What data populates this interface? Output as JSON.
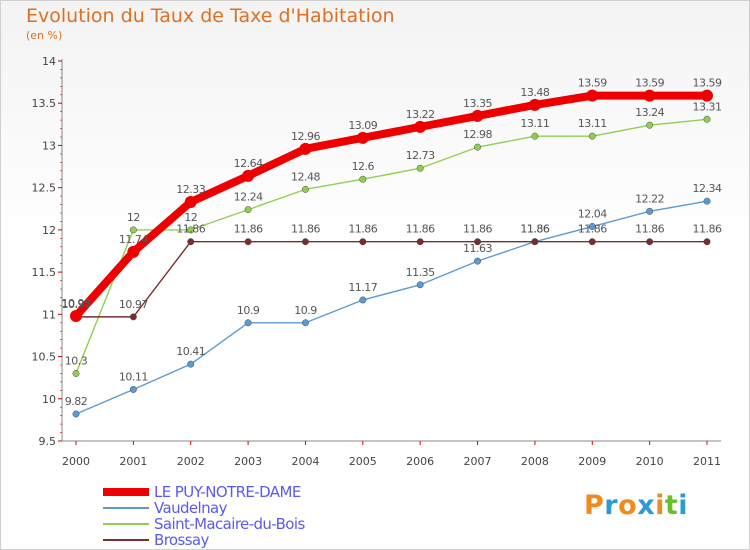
{
  "title": "Evolution du Taux de Taxe d'Habitation",
  "subtitle": "(en %)",
  "logo": {
    "text": "Proxiti",
    "colors": [
      "#f08a1c",
      "#2d9ad6",
      "#f08a1c",
      "#2d9ad6",
      "#f08a1c",
      "#6bbf2a",
      "#2d9ad6"
    ]
  },
  "chart_data": {
    "type": "line",
    "x": [
      "2000",
      "2001",
      "2002",
      "2003",
      "2004",
      "2005",
      "2006",
      "2007",
      "2008",
      "2009",
      "2010",
      "2011"
    ],
    "ylim": [
      9.5,
      14
    ],
    "yticks": [
      "9.5",
      "10",
      "10.5",
      "11",
      "11.5",
      "12",
      "12.5",
      "13",
      "13.5",
      "14"
    ],
    "grid": false,
    "legend_position": "bottom-left",
    "series": [
      {
        "name": "LE PUY-NOTRE-DAME",
        "color": "#ee0000",
        "values": [
          10.98,
          11.74,
          12.33,
          12.64,
          12.96,
          13.09,
          13.22,
          13.35,
          13.48,
          13.59,
          13.59,
          13.59
        ],
        "labels": [
          "10.98",
          "11.74",
          "12.33",
          "12.64",
          "12.96",
          "13.09",
          "13.22",
          "13.35",
          "13.48",
          "13.59",
          "13.59",
          "13.59"
        ]
      },
      {
        "name": "Vaudelnay",
        "color": "#5b9bd5",
        "values": [
          9.82,
          10.11,
          10.41,
          10.9,
          10.9,
          11.17,
          11.35,
          11.63,
          11.86,
          12.04,
          12.22,
          12.34
        ],
        "labels": [
          "9.82",
          "10.11",
          "10.41",
          "10.9",
          "10.9",
          "11.17",
          "11.35",
          "11.63",
          "11.86",
          "12.04",
          "12.22",
          "12.34"
        ]
      },
      {
        "name": "Saint-Macaire-du-Bois",
        "color": "#8fd14f",
        "values": [
          10.3,
          12,
          12,
          12.24,
          12.48,
          12.6,
          12.73,
          12.98,
          13.11,
          13.11,
          13.24,
          13.31
        ],
        "labels": [
          "10.3",
          "12",
          "12",
          "12.24",
          "12.48",
          "12.6",
          "12.73",
          "12.98",
          "13.11",
          "13.11",
          "13.24",
          "13.31"
        ]
      },
      {
        "name": "Brossay",
        "color": "#7b2c2c",
        "values": [
          10.97,
          10.97,
          11.86,
          11.86,
          11.86,
          11.86,
          11.86,
          11.86,
          11.86,
          11.86,
          11.86,
          11.86
        ],
        "labels": [
          "10.97",
          "10.97",
          "11.86",
          "11.86",
          "11.86",
          "11.86",
          "11.86",
          "11.86",
          "11.86",
          "11.86",
          "11.86",
          "11.86"
        ]
      }
    ]
  }
}
